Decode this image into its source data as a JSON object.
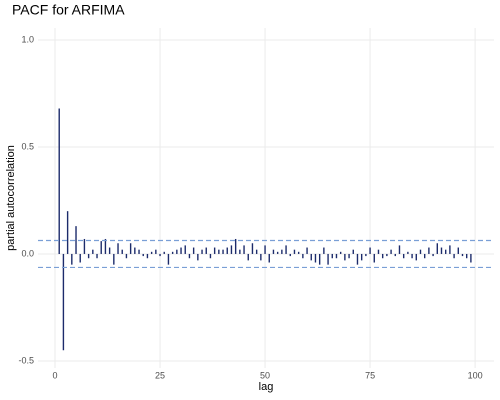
{
  "chart_data": {
    "type": "pacf",
    "title": "PACF for ARFIMA",
    "x_label": "lag",
    "y_label": "partial autocorrelation",
    "x": [
      1,
      2,
      3,
      4,
      5,
      6,
      7,
      8,
      9,
      10,
      11,
      12,
      13,
      14,
      15,
      16,
      17,
      18,
      19,
      20,
      21,
      22,
      23,
      24,
      25,
      26,
      27,
      28,
      29,
      30,
      31,
      32,
      33,
      34,
      35,
      36,
      37,
      38,
      39,
      40,
      41,
      42,
      43,
      44,
      45,
      46,
      47,
      48,
      49,
      50,
      51,
      52,
      53,
      54,
      55,
      56,
      57,
      58,
      59,
      60,
      61,
      62,
      63,
      64,
      65,
      66,
      67,
      68,
      69,
      70,
      71,
      72,
      73,
      74,
      75,
      76,
      77,
      78,
      79,
      80,
      81,
      82,
      83,
      84,
      85,
      86,
      87,
      88,
      89,
      90,
      91,
      92,
      93,
      94,
      95,
      96,
      97,
      98,
      99
    ],
    "values": [
      0.68,
      -0.45,
      0.2,
      -0.05,
      0.13,
      -0.04,
      0.07,
      -0.02,
      0.02,
      -0.02,
      0.06,
      0.07,
      0.03,
      -0.05,
      0.05,
      0.02,
      -0.02,
      0.05,
      0.03,
      0.02,
      -0.01,
      -0.02,
      0.01,
      0.02,
      -0.01,
      0.01,
      -0.05,
      0.01,
      0.02,
      0.03,
      0.04,
      -0.02,
      0.03,
      -0.03,
      0.02,
      0.03,
      -0.02,
      0.03,
      0.02,
      0.02,
      0.03,
      0.04,
      0.07,
      0.02,
      0.04,
      -0.03,
      0.05,
      0.02,
      -0.03,
      0.04,
      -0.04,
      0.02,
      0.01,
      0.02,
      0.04,
      -0.01,
      0.02,
      0.01,
      -0.02,
      0.03,
      -0.03,
      -0.04,
      -0.05,
      0.03,
      -0.05,
      -0.02,
      -0.02,
      0.01,
      -0.03,
      -0.02,
      0.02,
      -0.05,
      -0.03,
      -0.01,
      0.03,
      -0.04,
      0.02,
      -0.02,
      -0.01,
      0.02,
      -0.01,
      0.04,
      -0.02,
      0.01,
      -0.02,
      -0.03,
      0.02,
      -0.02,
      0.03,
      -0.01,
      0.05,
      0.03,
      0.02,
      0.04,
      -0.02,
      0.03,
      -0.01,
      -0.02,
      -0.04
    ],
    "color": "#1c2b6b",
    "ci_lines": [
      0.063,
      -0.063
    ],
    "ci_color": "#7a9fd6",
    "xlim": [
      -4.05,
      104.5
    ],
    "xticks": [
      0,
      25,
      50,
      75,
      100
    ],
    "ylim": [
      -0.533,
      1.056
    ],
    "yticks": [
      {
        "value": -0.5,
        "label": "-0.5"
      },
      {
        "value": 0,
        "label": "0.0"
      },
      {
        "value": 0.5,
        "label": "0.5"
      },
      {
        "value": 1,
        "label": "1.0"
      }
    ],
    "grid": true
  }
}
